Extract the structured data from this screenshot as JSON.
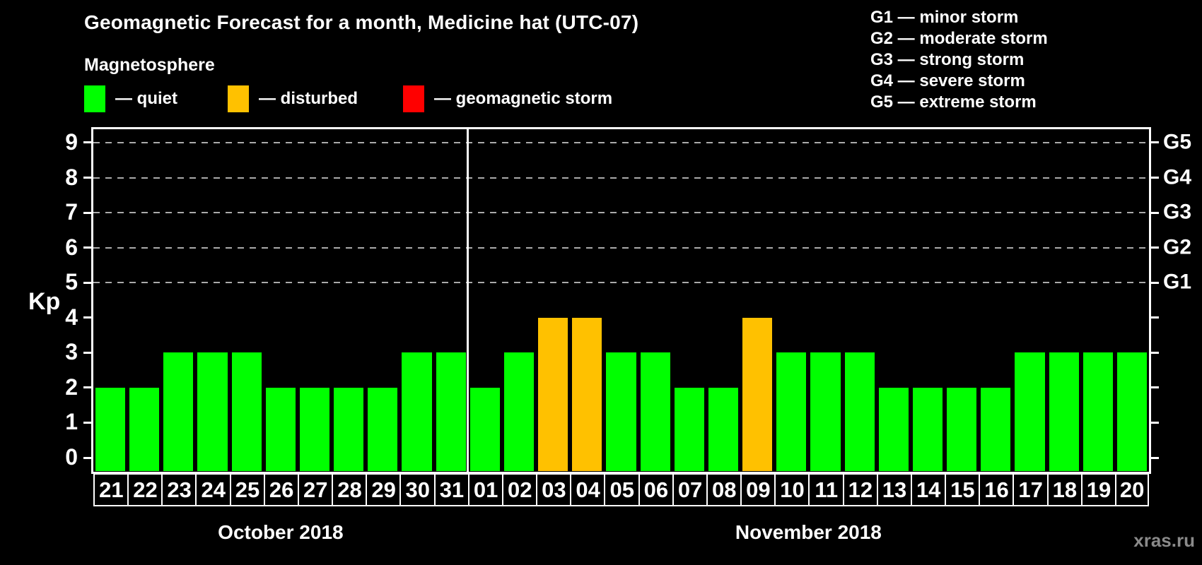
{
  "title": "Geomagnetic Forecast for a month, Medicine hat (UTC-07)",
  "watermark": "xras.ru",
  "legend": {
    "heading": "Magnetosphere",
    "items": [
      {
        "label": "— quiet",
        "status": "quiet",
        "color": "#00ff00"
      },
      {
        "label": "— disturbed",
        "status": "disturbed",
        "color": "#ffc100"
      },
      {
        "label": "— geomagnetic storm",
        "status": "storm",
        "color": "#ff0000"
      }
    ]
  },
  "g_legend": {
    "items": [
      "G1 — minor storm",
      "G2 — moderate storm",
      "G3 — strong storm",
      "G4 — severe storm",
      "G5 — extreme storm"
    ]
  },
  "colors": {
    "quiet": "#00ff00",
    "disturbed": "#ffc100",
    "storm": "#ff0000",
    "background": "#000000",
    "text": "#ffffff",
    "grid": "#aaaaaa",
    "watermark": "#8a8a8a"
  },
  "chart_data": {
    "type": "bar",
    "title": "Geomagnetic Forecast for a month, Medicine hat (UTC-07)",
    "xlabel": "",
    "ylabel": "Kp",
    "ylim": [
      0,
      9
    ],
    "y_ticks": [
      0,
      1,
      2,
      3,
      4,
      5,
      6,
      7,
      8,
      9
    ],
    "grid": "horizontal dashed lines at Kp 5 through 9",
    "legend_position": "top",
    "right_axis_labels": [
      {
        "value": 5,
        "label": "G1"
      },
      {
        "value": 6,
        "label": "G2"
      },
      {
        "value": 7,
        "label": "G3"
      },
      {
        "value": 8,
        "label": "G4"
      },
      {
        "value": 9,
        "label": "G5"
      }
    ],
    "months": [
      {
        "label": "October 2018",
        "days": [
          "21",
          "22",
          "23",
          "24",
          "25",
          "26",
          "27",
          "28",
          "29",
          "30",
          "31"
        ],
        "values": [
          2,
          2,
          3,
          3,
          3,
          2,
          2,
          2,
          2,
          3,
          3
        ],
        "statuses": [
          "quiet",
          "quiet",
          "quiet",
          "quiet",
          "quiet",
          "quiet",
          "quiet",
          "quiet",
          "quiet",
          "quiet",
          "quiet"
        ]
      },
      {
        "label": "November 2018",
        "days": [
          "01",
          "02",
          "03",
          "04",
          "05",
          "06",
          "07",
          "08",
          "09",
          "10",
          "11",
          "12",
          "13",
          "14",
          "15",
          "16",
          "17",
          "18",
          "19",
          "20"
        ],
        "values": [
          2,
          3,
          4,
          4,
          3,
          3,
          2,
          2,
          4,
          3,
          3,
          3,
          2,
          2,
          2,
          2,
          3,
          3,
          3,
          3
        ],
        "statuses": [
          "quiet",
          "quiet",
          "disturbed",
          "disturbed",
          "quiet",
          "quiet",
          "quiet",
          "quiet",
          "disturbed",
          "quiet",
          "quiet",
          "quiet",
          "quiet",
          "quiet",
          "quiet",
          "quiet",
          "quiet",
          "quiet",
          "quiet",
          "quiet"
        ]
      }
    ]
  }
}
